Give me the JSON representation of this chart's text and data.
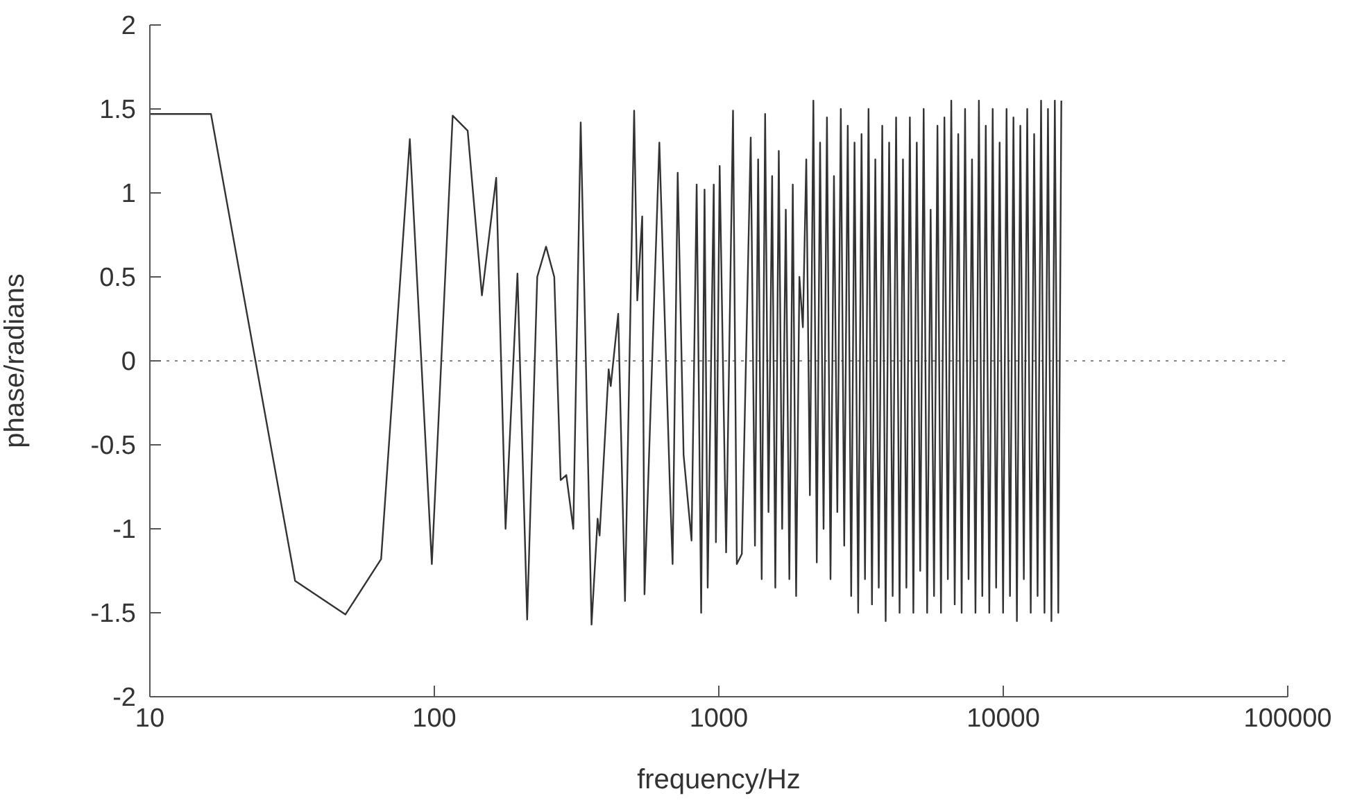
{
  "chart_data": {
    "type": "line",
    "xlabel": "frequency/Hz",
    "ylabel": "phase/radians",
    "log": "x",
    "xlim": [
      10,
      100000
    ],
    "xticks": [
      10,
      100,
      1000,
      10000,
      100000
    ],
    "ylim": [
      -2,
      2
    ],
    "yticks": [
      -2,
      -1.5,
      -1,
      -0.5,
      0,
      0.5,
      1,
      1.5,
      2
    ],
    "ref_lines": [
      {
        "axis": "y",
        "value": 0,
        "color": "#888888",
        "line_style": "dotted"
      }
    ],
    "series": [
      {
        "color": "#333333",
        "x": [
          10,
          16.4,
          32.4,
          48.7,
          65,
          82,
          98,
          116,
          131,
          147,
          165,
          178,
          196,
          212,
          230,
          247,
          264,
          278,
          291,
          308,
          327,
          357,
          375,
          381,
          410,
          417,
          443,
          468,
          504,
          517,
          538,
          548,
          618,
          674,
          688,
          717,
          752,
          802,
          836,
          867,
          891,
          914,
          960,
          977,
          1007,
          1061,
          1122,
          1157,
          1205,
          1295,
          1340,
          1375,
          1415,
          1455,
          1495,
          1540,
          1580,
          1625,
          1670,
          1720,
          1770,
          1820,
          1870,
          1920,
          1975,
          2030,
          2090,
          2150,
          2210,
          2270,
          2335,
          2400,
          2470,
          2540,
          2610,
          2685,
          2760,
          2840,
          2920,
          3000,
          3090,
          3175,
          3265,
          3360,
          3455,
          3550,
          3650,
          3755,
          3860,
          3970,
          4085,
          4200,
          4320,
          4440,
          4565,
          4695,
          4830,
          4965,
          5105,
          5250,
          5400,
          5555,
          5710,
          5870,
          6040,
          6210,
          6385,
          6565,
          6750,
          6945,
          7140,
          7340,
          7550,
          7765,
          7985,
          8210,
          8440,
          8680,
          8930,
          9180,
          9440,
          9710,
          9985,
          10270,
          10560,
          10860,
          11165,
          11480,
          11810,
          12140,
          12490,
          12840,
          13200,
          13580,
          13960,
          14360,
          14765,
          15180,
          15610,
          16000
        ],
        "values": [
          1.47,
          1.47,
          -1.31,
          -1.51,
          -1.18,
          1.32,
          -1.21,
          1.46,
          1.37,
          0.39,
          1.09,
          -1.0,
          0.52,
          -1.54,
          0.5,
          0.68,
          0.5,
          -0.71,
          -0.68,
          -1.0,
          1.42,
          -1.57,
          -0.94,
          -1.04,
          -0.05,
          -0.15,
          0.28,
          -1.43,
          1.49,
          0.36,
          0.86,
          -1.39,
          1.3,
          -0.78,
          -1.21,
          1.12,
          -0.56,
          -1.07,
          1.05,
          -1.5,
          1.02,
          -1.35,
          1.05,
          -1.08,
          1.16,
          -1.14,
          1.49,
          -1.21,
          -1.15,
          1.33,
          -1.1,
          1.2,
          -1.3,
          1.47,
          -0.9,
          1.1,
          -1.35,
          1.25,
          -1.0,
          0.9,
          -1.3,
          1.05,
          -1.4,
          0.5,
          0.2,
          1.2,
          -0.8,
          1.55,
          -1.2,
          1.3,
          -1.0,
          1.45,
          -1.3,
          1.1,
          -0.9,
          1.5,
          -1.1,
          1.4,
          -1.4,
          1.3,
          -1.5,
          1.35,
          -1.3,
          1.5,
          -1.45,
          1.2,
          -1.35,
          1.4,
          -1.55,
          1.3,
          -1.4,
          1.45,
          -1.5,
          1.2,
          -1.35,
          1.45,
          -1.5,
          1.3,
          -1.25,
          1.5,
          -1.5,
          0.9,
          -1.4,
          1.4,
          -1.5,
          1.45,
          -1.3,
          1.55,
          -1.45,
          1.35,
          -1.5,
          1.5,
          -1.3,
          1.2,
          -1.5,
          1.55,
          -1.4,
          1.4,
          -1.5,
          1.5,
          -1.35,
          1.3,
          -1.5,
          1.5,
          -1.4,
          1.45,
          -1.55,
          1.4,
          -1.3,
          1.5,
          -1.5,
          1.35,
          -1.4,
          1.55,
          -1.5,
          1.5,
          -1.55,
          1.55,
          -1.5,
          1.55
        ]
      }
    ]
  }
}
